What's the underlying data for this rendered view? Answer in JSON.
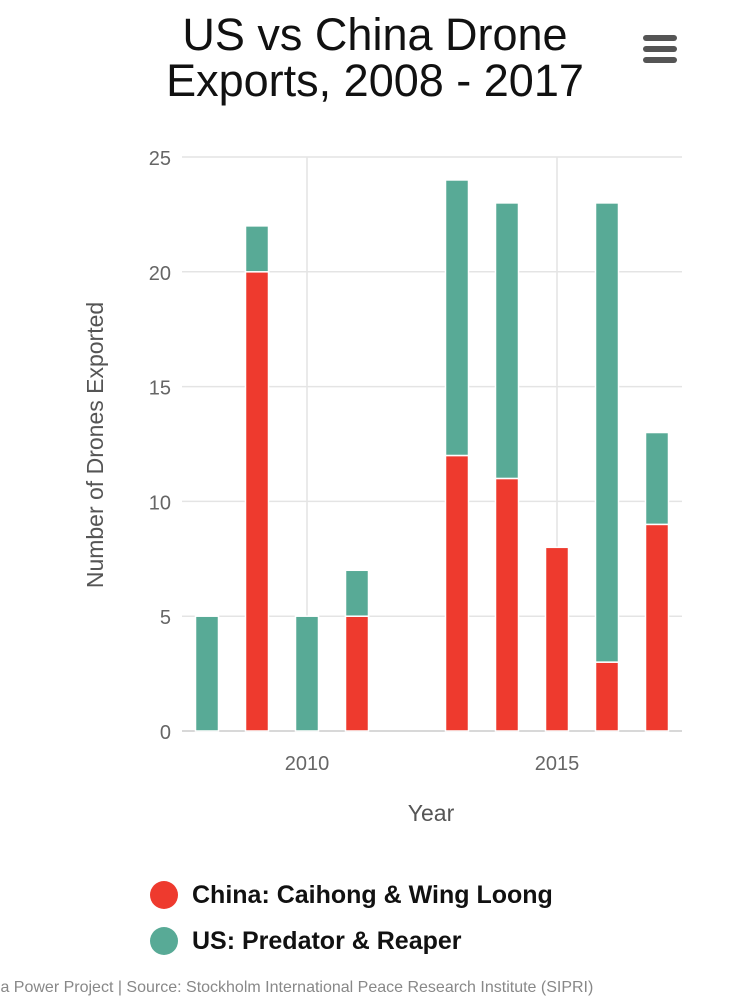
{
  "title": "US vs China Drone Exports, 2008 - 2017",
  "menu": {
    "icon": "hamburger-menu-icon"
  },
  "chart_data": {
    "type": "bar",
    "stacked": true,
    "title": "US vs China Drone Exports, 2008 - 2017",
    "xlabel": "Year",
    "ylabel": "Number of Drones Exported",
    "x": [
      2008,
      2009,
      2010,
      2011,
      2012,
      2013,
      2014,
      2015,
      2016,
      2017
    ],
    "xticks": [
      "2010",
      "2015"
    ],
    "yticks": [
      "0",
      "5",
      "10",
      "15",
      "20",
      "25"
    ],
    "ylim": [
      0,
      25
    ],
    "xlim": [
      2007.5,
      2017.5
    ],
    "grid": true,
    "legend_position": "bottom",
    "series": [
      {
        "name": "China: Caihong & Wing Loong",
        "color": "#ee3a2e",
        "values": [
          0,
          20,
          0,
          5,
          0,
          12,
          11,
          8,
          3,
          9
        ]
      },
      {
        "name": "US: Predator & Reaper",
        "color": "#58aa96",
        "values": [
          5,
          2,
          5,
          2,
          0,
          12,
          12,
          0,
          20,
          4
        ]
      }
    ]
  },
  "credits": "ıa Power Project | Source: Stockholm International Peace Research Institute (SIPRI)"
}
